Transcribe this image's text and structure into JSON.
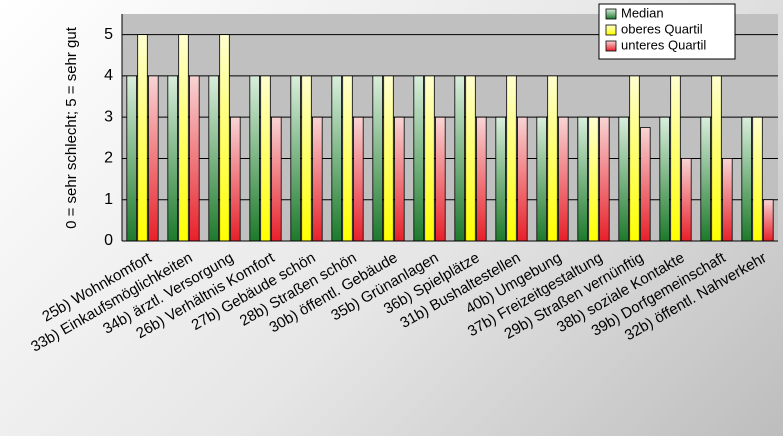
{
  "chart_data": {
    "type": "bar",
    "ylabel": "0 = sehr schlecht; 5 = sehr gut",
    "ylim": [
      0,
      5.5
    ],
    "yticks": [
      0,
      1,
      2,
      3,
      4,
      5
    ],
    "grid": true,
    "legend_position": "top-right",
    "categories": [
      "25b) Wohnkomfort",
      "33b) Einkaufsmöglichkeiten",
      "34b) ärztl. Versorgung",
      "26b) Verhältnis Komfort",
      "27b) Gebäude schön",
      "28b) Straßen schön",
      "30b) öffentl. Gebäude",
      "35b) Grünanlagen",
      "36b) Spielplätze",
      "31b) Bushaltestellen",
      "40b) Umgebung",
      "37b) Freizeitgestaltung",
      "29b) Straßen vernünftig",
      "38b) soziale Kontakte",
      "39b) Dorfgemeinschaft",
      "32b) öffentl. Nahverkehr"
    ],
    "series": [
      {
        "name": "Median",
        "color": "#2e8b3c",
        "values": [
          4,
          4,
          4,
          4,
          4,
          4,
          4,
          4,
          4,
          3,
          3,
          3,
          3,
          3,
          3,
          3
        ]
      },
      {
        "name": "oberes Quartil",
        "color": "#ffff00",
        "values": [
          5,
          5,
          5,
          4,
          4,
          4,
          4,
          4,
          4,
          4,
          4,
          3,
          4,
          4,
          4,
          3
        ]
      },
      {
        "name": "unteres Quartil",
        "color": "#e8353a",
        "values": [
          4,
          4,
          3,
          3,
          3,
          3,
          3,
          3,
          3,
          3,
          3,
          3,
          2.75,
          2,
          2,
          1
        ]
      }
    ]
  }
}
